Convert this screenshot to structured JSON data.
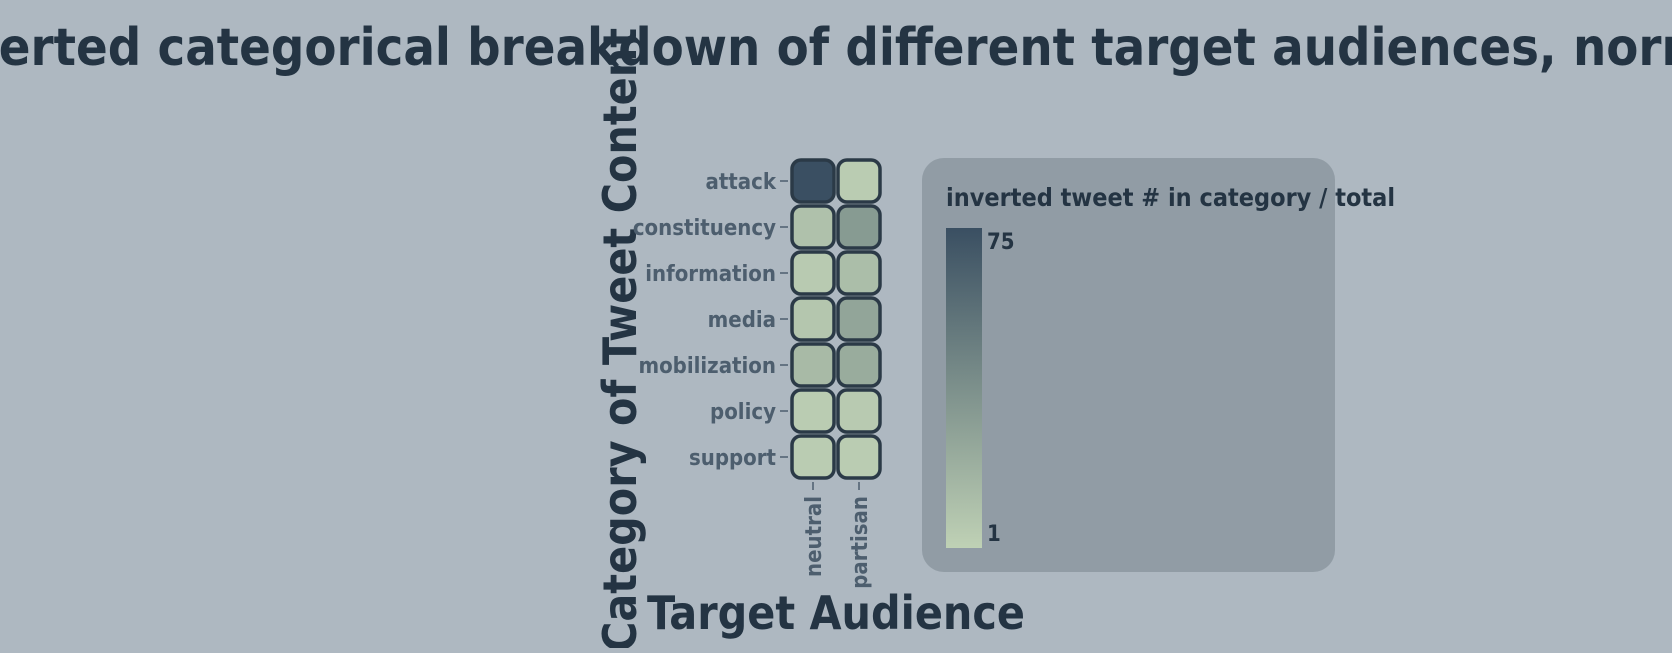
{
  "chart_data": {
    "type": "heatmap",
    "title": "The inverted categorical breakdown of different target audiences, normalized",
    "xlabel": "Target Audience",
    "ylabel": "Category of Tweet Content",
    "x_categories": [
      "neutral",
      "partisan"
    ],
    "y_categories": [
      "attack",
      "constituency",
      "information",
      "media",
      "mobilization",
      "policy",
      "support"
    ],
    "values": [
      [
        75,
        4
      ],
      [
        10,
        32
      ],
      [
        5,
        12
      ],
      [
        7,
        26
      ],
      [
        14,
        22
      ],
      [
        4,
        5
      ],
      [
        4,
        4
      ]
    ],
    "legend": {
      "title": "inverted tweet # in category / total",
      "min_label": "1",
      "max_label": "75",
      "min": 1,
      "max": 75,
      "min_color": "#bfd1b5",
      "max_color": "#3a4f62",
      "placement": "right"
    },
    "colors": {
      "background": "#aeb8c1",
      "legend_panel": "#919ca5",
      "cell_stroke": "#2b3a47",
      "title_text": "#243443",
      "tick_text": "#4d5e6e"
    }
  }
}
